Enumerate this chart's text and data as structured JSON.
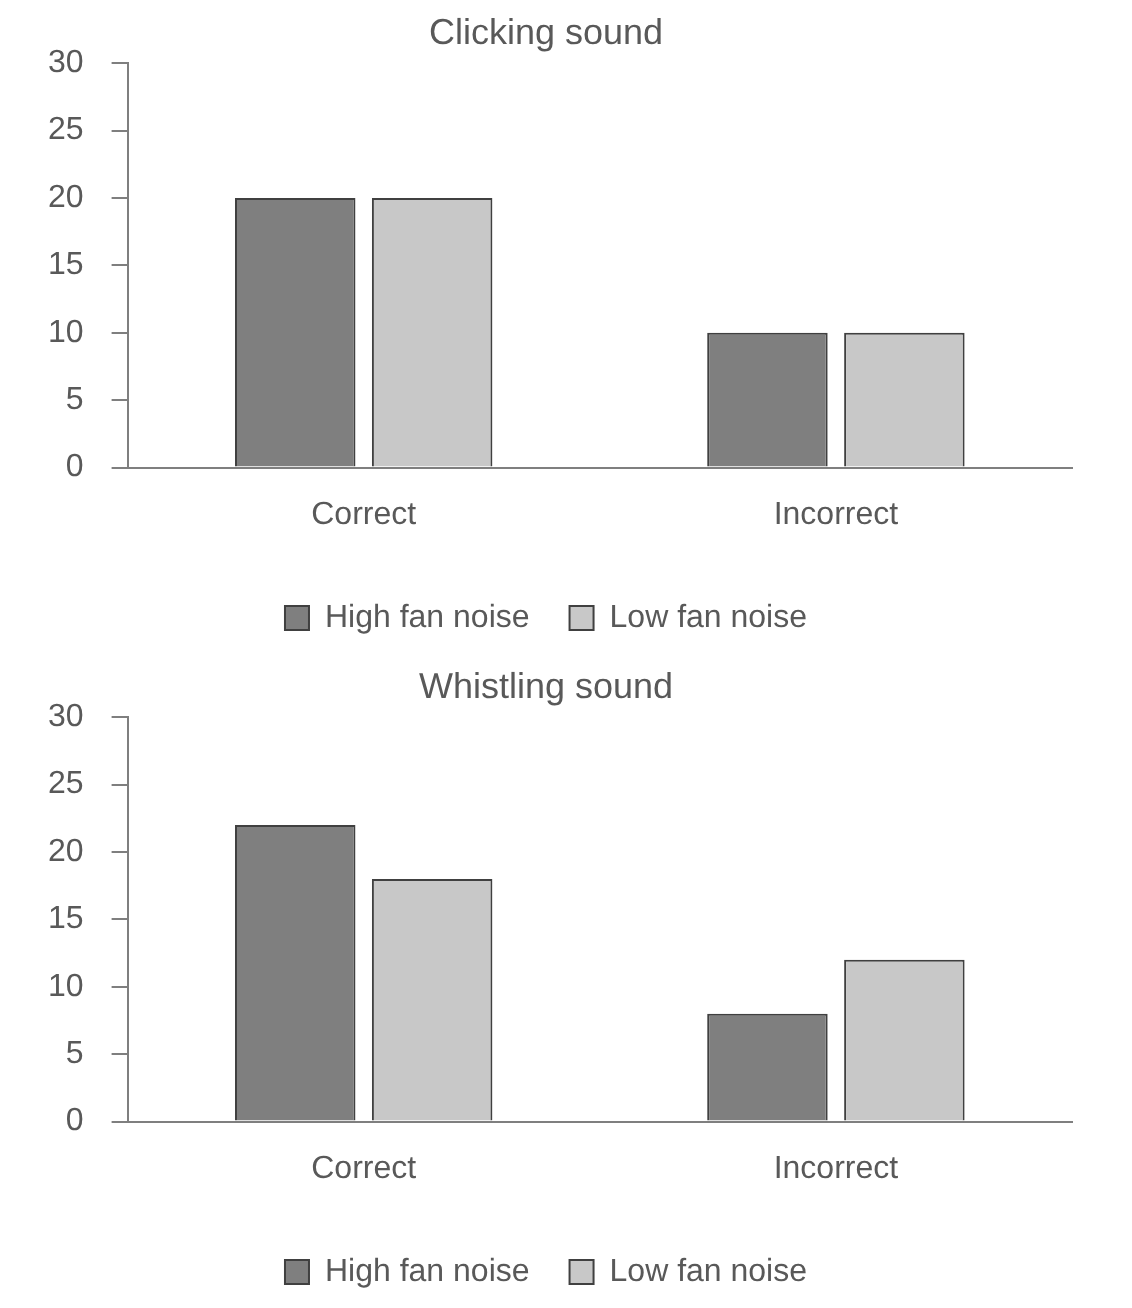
{
  "chart_data": [
    {
      "type": "bar",
      "title": "Clicking sound",
      "categories": [
        "Correct",
        "Incorrect"
      ],
      "series": [
        {
          "name": "High fan noise",
          "color": "#7f7f7f",
          "values": [
            20,
            10
          ]
        },
        {
          "name": "Low fan noise",
          "color": "#c8c8c8",
          "values": [
            20,
            10
          ]
        }
      ],
      "ylim": [
        0,
        30
      ],
      "yticks": [
        0,
        5,
        10,
        15,
        20,
        25,
        30
      ],
      "grid": false,
      "legend": "bottom"
    },
    {
      "type": "bar",
      "title": "Whistling sound",
      "categories": [
        "Correct",
        "Incorrect"
      ],
      "series": [
        {
          "name": "High fan noise",
          "color": "#7f7f7f",
          "values": [
            22,
            8
          ]
        },
        {
          "name": "Low fan noise",
          "color": "#c8c8c8",
          "values": [
            18,
            12
          ]
        }
      ],
      "ylim": [
        0,
        30
      ],
      "yticks": [
        0,
        5,
        10,
        15,
        20,
        25,
        30
      ],
      "grid": false,
      "legend": "bottom"
    }
  ]
}
